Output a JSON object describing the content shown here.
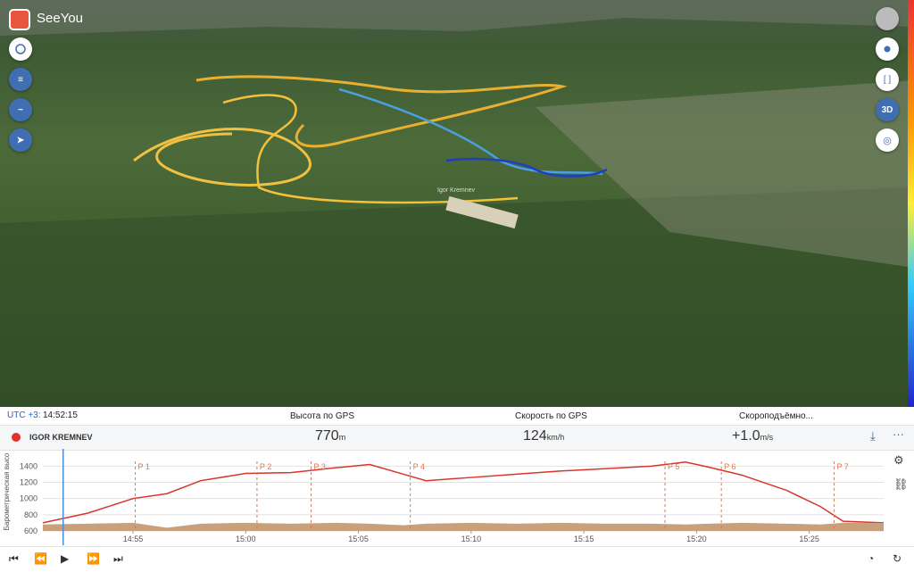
{
  "app": {
    "name": "SeeYou"
  },
  "map": {
    "pilot_label": "Igor Kremnev",
    "mode_button": "3D"
  },
  "status": {
    "timezone": "UTC +3:",
    "time": "14:52:15"
  },
  "columns": [
    "Высота по GPS",
    "Скорость по GPS",
    "Скороподъёмно..."
  ],
  "pilot": {
    "name": "IGOR KREMNEV",
    "readings": [
      {
        "value": "770",
        "unit": "m"
      },
      {
        "value": "124",
        "unit": "km/h"
      },
      {
        "value": "+1.0",
        "unit": "m/s"
      }
    ]
  },
  "chart_data": {
    "type": "line",
    "y_label": "Барометрическая высо",
    "x": [
      891,
      893,
      895,
      896.5,
      898,
      900,
      902,
      904,
      905.5,
      907,
      908,
      910,
      912,
      914,
      916,
      918,
      919.5,
      920.5,
      922,
      924,
      925.5,
      926.5,
      928.3
    ],
    "series": [
      {
        "color": "#d9352b",
        "values": [
          700,
          820,
          1000,
          1060,
          1220,
          1310,
          1320,
          1380,
          1420,
          1300,
          1220,
          1260,
          1300,
          1340,
          1370,
          1400,
          1450,
          1390,
          1290,
          1100,
          900,
          720,
          700
        ]
      },
      {
        "color": "#c8a07c",
        "area": true,
        "values": [
          680,
          690,
          700,
          640,
          690,
          700,
          690,
          700,
          690,
          670,
          690,
          700,
          690,
          700,
          690,
          690,
          680,
          690,
          700,
          690,
          680,
          700,
          700
        ]
      }
    ],
    "xlim": [
      891,
      928.3
    ],
    "ylim": [
      600,
      1580
    ],
    "yticks": [
      600,
      800,
      1000,
      1200,
      1400
    ],
    "xticks": [
      {
        "value": 895,
        "label": "14:55"
      },
      {
        "value": 900,
        "label": "15:00"
      },
      {
        "value": 905,
        "label": "15:05"
      },
      {
        "value": 910,
        "label": "15:10"
      },
      {
        "value": 915,
        "label": "15:15"
      },
      {
        "value": 920,
        "label": "15:20"
      },
      {
        "value": 925,
        "label": "15:25"
      }
    ],
    "markers": [
      {
        "label": "P 1",
        "x": 895.1
      },
      {
        "label": "P 2",
        "x": 900.5
      },
      {
        "label": "P 3",
        "x": 902.9
      },
      {
        "label": "P 4",
        "x": 907.3
      },
      {
        "label": "P 5",
        "x": 918.6
      },
      {
        "label": "P 6",
        "x": 921.1
      },
      {
        "label": "P 7",
        "x": 926.1
      }
    ],
    "cursor_x": 891.9,
    "grid": true
  }
}
